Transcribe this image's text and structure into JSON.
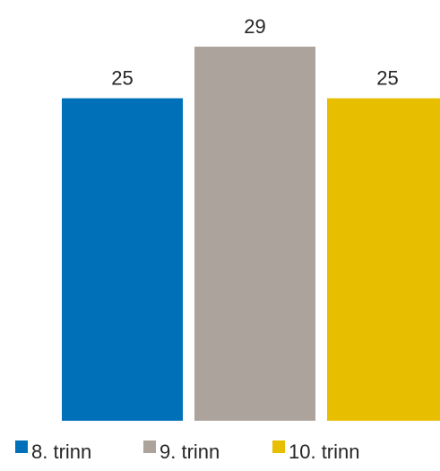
{
  "chart_data": {
    "type": "bar",
    "categories": [
      "8. trinn",
      "9. trinn",
      "10. trinn"
    ],
    "values": [
      25,
      29,
      25
    ],
    "colors": [
      "#0070b8",
      "#aba39c",
      "#e8be00"
    ],
    "title": "",
    "xlabel": "",
    "ylabel": "",
    "ylim": [
      0,
      29
    ],
    "grid": false,
    "legend_position": "bottom"
  }
}
